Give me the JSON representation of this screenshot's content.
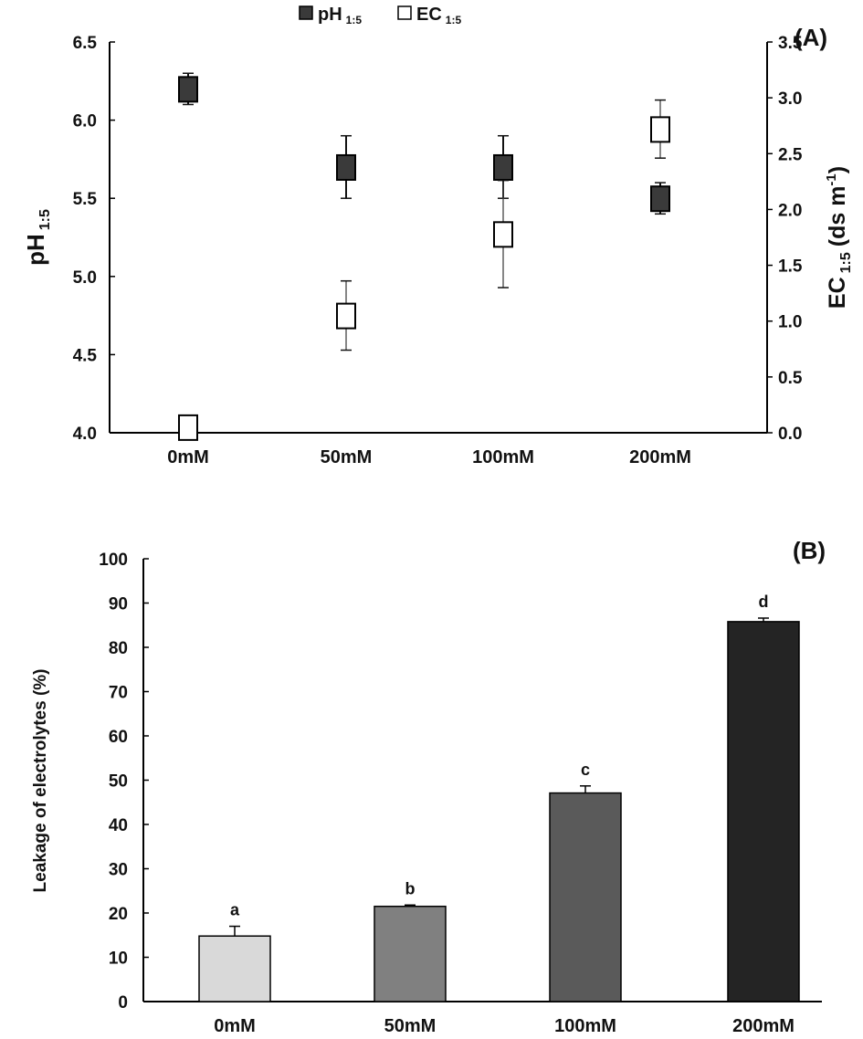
{
  "chart_data": [
    {
      "type": "scatter",
      "panel_label": "(A)",
      "categories": [
        "0mM",
        "50mM",
        "100mM",
        "200mM"
      ],
      "ylabel_left": "pH",
      "ylabel_left_sub": "1:5",
      "ylabel_right": "EC",
      "ylabel_right_sub": "1:5",
      "ylabel_right_unit": "(ds m",
      "ylabel_right_unit_sup": "-1",
      "ylabel_right_unit_close": ")",
      "ylim_left": [
        4.0,
        6.5
      ],
      "ylim_right": [
        0.0,
        3.5
      ],
      "yticks_left": [
        "4.0",
        "4.5",
        "5.0",
        "5.5",
        "6.0",
        "6.5"
      ],
      "yticks_right": [
        "0.0",
        "0.5",
        "1.0",
        "1.5",
        "2.0",
        "2.5",
        "3.0",
        "3.5"
      ],
      "legend_position": "top-center",
      "grid": false,
      "series": [
        {
          "name": "pH",
          "name_sub": "1:5",
          "axis": "left",
          "marker": "filled-square",
          "color": "#3a3a3a",
          "values": [
            6.2,
            5.7,
            5.7,
            5.5
          ],
          "errors": [
            0.1,
            0.2,
            0.2,
            0.1
          ]
        },
        {
          "name": "EC",
          "name_sub": "1:5",
          "axis": "right",
          "marker": "open-square",
          "color": "#ffffff",
          "values": [
            0.05,
            1.05,
            1.78,
            2.72
          ],
          "errors": [
            0.0,
            0.31,
            0.48,
            0.26
          ]
        }
      ]
    },
    {
      "type": "bar",
      "panel_label": "(B)",
      "categories": [
        "0mM",
        "50mM",
        "100mM",
        "200mM"
      ],
      "values": [
        14.8,
        21.5,
        47.1,
        85.8
      ],
      "errors": [
        2.2,
        0.3,
        1.6,
        0.8
      ],
      "letters": [
        "a",
        "b",
        "c",
        "d"
      ],
      "colors": [
        "#d9d9d9",
        "#808080",
        "#5a5a5a",
        "#242424"
      ],
      "ylabel": "Leakage of electrolytes (%)",
      "xlabel": "",
      "ylim": [
        0,
        100
      ],
      "yticks": [
        "0",
        "10",
        "20",
        "30",
        "40",
        "50",
        "60",
        "70",
        "80",
        "90",
        "100"
      ],
      "grid": false
    }
  ]
}
